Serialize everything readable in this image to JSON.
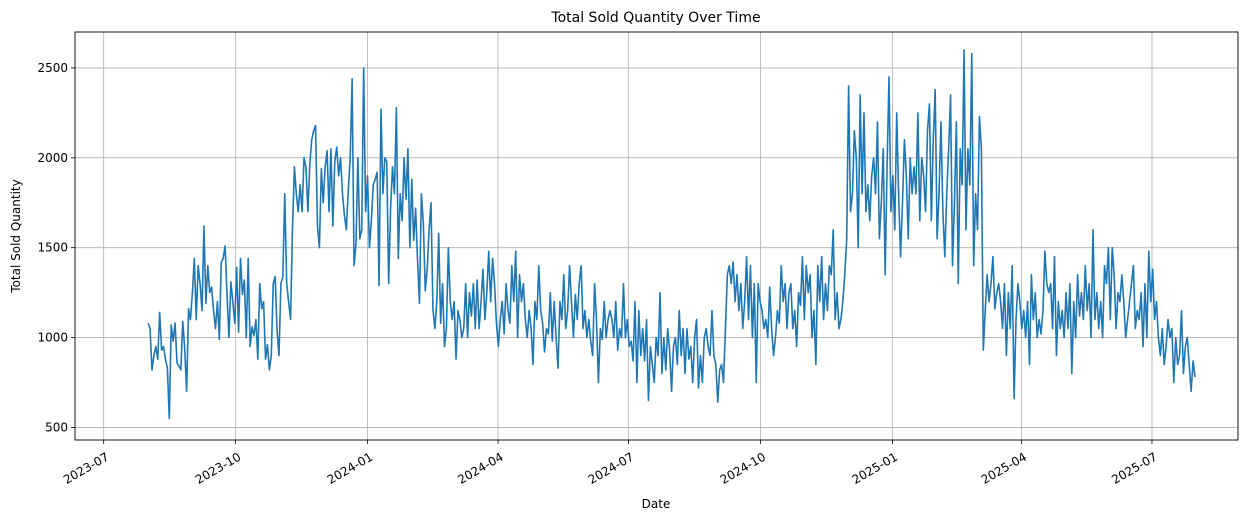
{
  "chart_data": {
    "type": "line",
    "title": "Total Sold Quantity Over Time",
    "xlabel": "Date",
    "ylabel": "Total Sold Quantity",
    "xlim": [
      "2023-06-11",
      "2025-08-30"
    ],
    "ylim": [
      430,
      2700
    ],
    "grid": true,
    "color": "#1f77b4",
    "x_ticks": [
      "2023-07",
      "2023-10",
      "2024-01",
      "2024-04",
      "2024-07",
      "2024-10",
      "2025-01",
      "2025-04",
      "2025-07"
    ],
    "y_ticks": [
      500,
      1000,
      1500,
      2000,
      2500
    ],
    "series": [
      {
        "start_date": "2023-08-01",
        "end_date": "2025-07-31",
        "values": [
          1080,
          1050,
          820,
          900,
          950,
          880,
          1140,
          930,
          950,
          880,
          830,
          550,
          1070,
          980,
          1080,
          860,
          840,
          820,
          1090,
          940,
          700,
          1160,
          1100,
          1250,
          1440,
          1100,
          1400,
          1300,
          1150,
          1620,
          1190,
          1400,
          1250,
          1280,
          1150,
          1050,
          1200,
          990,
          1420,
          1440,
          1510,
          1240,
          1000,
          1310,
          1200,
          1080,
          1390,
          1030,
          1440,
          1240,
          1320,
          1000,
          1440,
          950,
          1060,
          1010,
          1100,
          880,
          1300,
          1160,
          1200,
          880,
          960,
          820,
          900,
          1300,
          1340,
          1040,
          900,
          1300,
          1340,
          1800,
          1300,
          1200,
          1100,
          1600,
          1950,
          1800,
          1700,
          1850,
          1700,
          2000,
          1950,
          1700,
          1960,
          2100,
          2150,
          2180,
          1620,
          1500,
          1940,
          1750,
          1950,
          2040,
          1700,
          2050,
          1620,
          1980,
          2060,
          1900,
          2000,
          1800,
          1680,
          1600,
          1820,
          2000,
          2440,
          1400,
          1520,
          2000,
          1550,
          1600,
          2500,
          1700,
          1900,
          1500,
          1650,
          1850,
          1880,
          1920,
          1290,
          2270,
          1800,
          2000,
          1980,
          1300,
          1720,
          1950,
          1800,
          2280,
          1440,
          1800,
          1650,
          2000,
          1770,
          2050,
          1500,
          1880,
          1540,
          1720,
          1430,
          1190,
          1800,
          1640,
          1260,
          1380,
          1600,
          1750,
          1160,
          1050,
          1200,
          1580,
          1080,
          1300,
          950,
          1050,
          1500,
          1200,
          1100,
          1200,
          880,
          1150,
          1100,
          1000,
          1050,
          1300,
          1000,
          1250,
          1120,
          1300,
          1050,
          1320,
          1050,
          1200,
          1380,
          1100,
          1250,
          1480,
          1200,
          1440,
          1300,
          1080,
          950,
          1100,
          1200,
          1020,
          1300,
          1150,
          1080,
          1400,
          1200,
          1480,
          1000,
          1350,
          1200,
          1300,
          1100,
          1000,
          1150,
          1050,
          850,
          1200,
          1100,
          1400,
          1150,
          1080,
          920,
          1050,
          1020,
          1250,
          980,
          1200,
          1000,
          830,
          1200,
          1100,
          1350,
          1050,
          1150,
          1400,
          1200,
          1000,
          1240,
          1100,
          1300,
          1400,
          1050,
          1150,
          1000,
          1100,
          980,
          900,
          1300,
          1100,
          750,
          1050,
          990,
          1200,
          1000,
          1100,
          1150,
          1100,
          1000,
          1200,
          930,
          1050,
          1000,
          1300,
          1000,
          1100,
          950,
          980,
          870,
          1200,
          750,
          1150,
          900,
          1050,
          870,
          1100,
          650,
          950,
          850,
          750,
          1000,
          900,
          1250,
          800,
          1000,
          820,
          1050,
          930,
          700,
          950,
          1000,
          850,
          1150,
          900,
          1050,
          800,
          1050,
          880,
          950,
          750,
          1000,
          1100,
          720,
          900,
          750,
          1000,
          1050,
          950,
          900,
          1150,
          900,
          850,
          640,
          820,
          850,
          750,
          1050,
          1350,
          1400,
          1300,
          1420,
          1200,
          1350,
          1150,
          1300,
          1050,
          1200,
          1450,
          1100,
          1400,
          1000,
          1300,
          750,
          1300,
          1200,
          1150,
          1050,
          1100,
          1000,
          1280,
          1050,
          900,
          1000,
          1150,
          1080,
          1400,
          1200,
          1300,
          1050,
          1250,
          1300,
          1050,
          1150,
          950,
          1250,
          1180,
          1450,
          1100,
          1400,
          1250,
          1350,
          1000,
          1150,
          850,
          1400,
          1200,
          1450,
          1100,
          1300,
          1150,
          1400,
          1350,
          1600,
          1100,
          1250,
          1050,
          1100,
          1200,
          1350,
          1540,
          2400,
          1700,
          1800,
          2150,
          2000,
          1500,
          2350,
          1800,
          2250,
          1700,
          1850,
          1650,
          1900,
          2000,
          1800,
          2200,
          1550,
          1750,
          2050,
          1350,
          1950,
          2450,
          1700,
          1900,
          1600,
          2250,
          1800,
          1450,
          1750,
          2100,
          1900,
          1550,
          2000,
          1800,
          1950,
          1800,
          2250,
          1650,
          2000,
          1900,
          1700,
          2150,
          2300,
          1650,
          2100,
          2380,
          1550,
          1800,
          2200,
          1700,
          1450,
          1800,
          2050,
          2350,
          1400,
          1750,
          2200,
          1300,
          2050,
          1850,
          2600,
          1600,
          2050,
          1850,
          2580,
          1400,
          1800,
          1600,
          2230,
          2050,
          930,
          1150,
          1350,
          1200,
          1300,
          1450,
          1160,
          1250,
          1300,
          1200,
          1050,
          1300,
          900,
          1250,
          1050,
          1400,
          660,
          1100,
          1300,
          1200,
          1050,
          1150,
          1000,
          1200,
          850,
          1350,
          1100,
          1250,
          1000,
          1100,
          1020,
          1150,
          1480,
          1300,
          1250,
          1300,
          1050,
          1450,
          900,
          1200,
          1050,
          1150,
          1000,
          1250,
          1050,
          1300,
          800,
          1200,
          1000,
          1350,
          1120,
          1250,
          1100,
          1400,
          1150,
          1300,
          1000,
          1600,
          1100,
          1250,
          1050,
          1200,
          1000,
          1400,
          1300,
          1500,
          1100,
          1500,
          1350,
          1050,
          1250,
          1200,
          1350,
          1200,
          1000,
          1100,
          1200,
          1300,
          1400,
          1050,
          1150,
          1100,
          1250,
          950,
          1300,
          1000,
          1480,
          1200,
          1380,
          1100,
          1200,
          1000,
          900,
          1050,
          850,
          950,
          1100,
          1000,
          1050,
          750,
          1000,
          850,
          900,
          1150,
          800,
          950,
          1000,
          850,
          700,
          870,
          780
        ]
      }
    ]
  }
}
